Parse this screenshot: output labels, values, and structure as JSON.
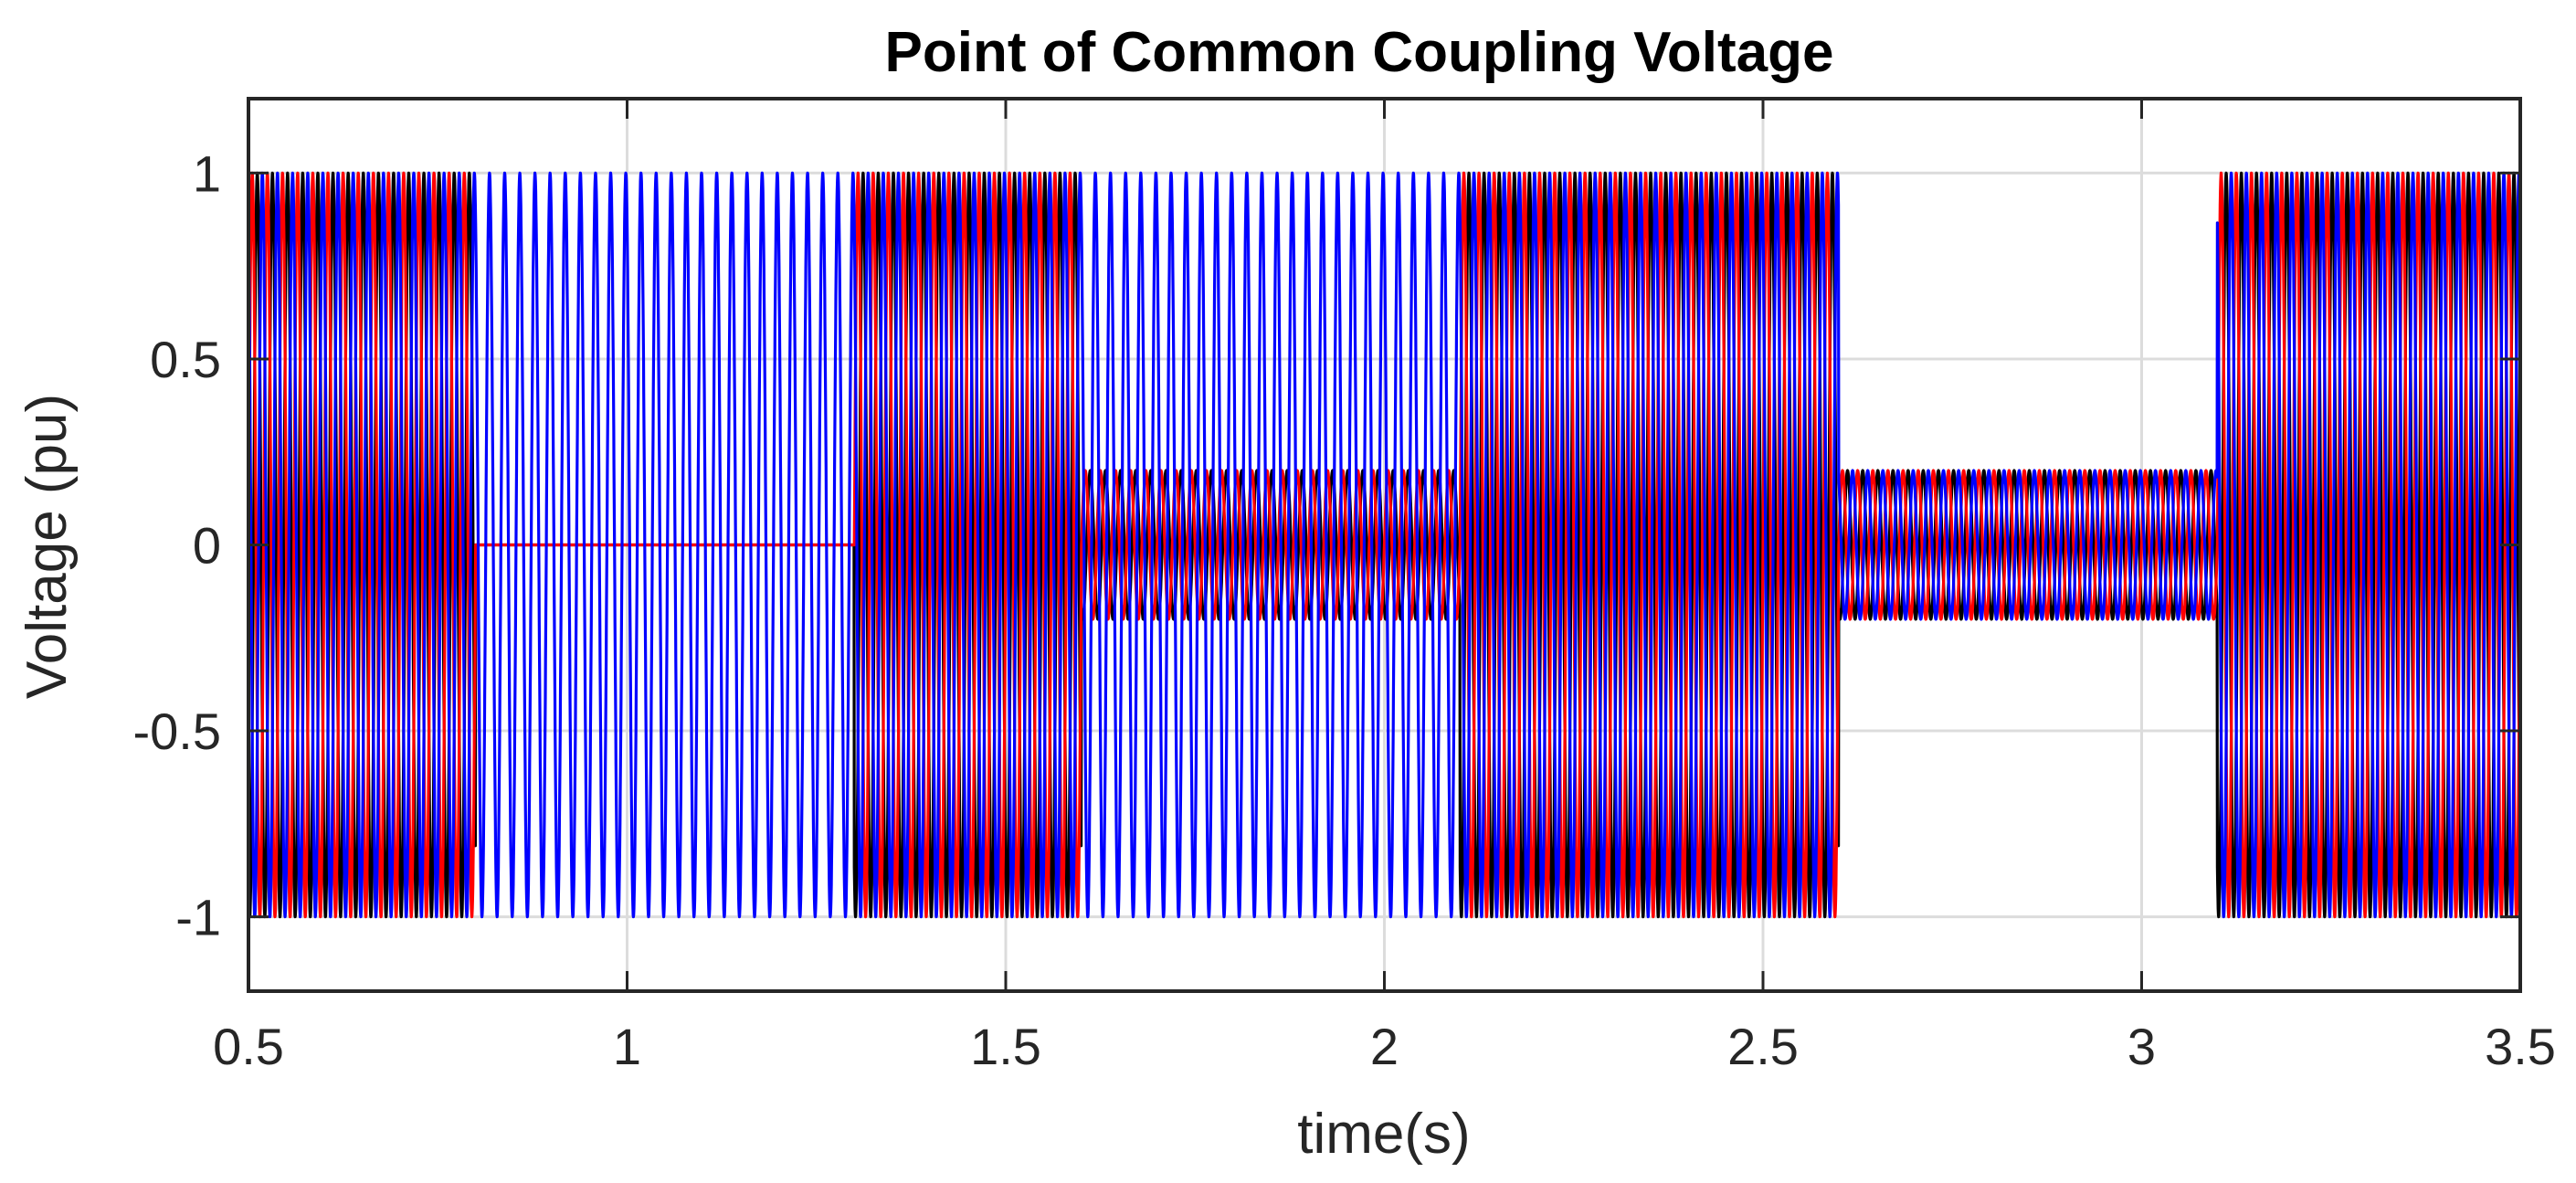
{
  "chart_data": {
    "type": "line",
    "title": "Point of Common Coupling Voltage",
    "xlabel": "time(s)",
    "ylabel": "Voltage (pu)",
    "xlim": [
      0.5,
      3.5
    ],
    "ylim": [
      -1.2,
      1.2
    ],
    "xticks": [
      0.5,
      1,
      1.5,
      2,
      2.5,
      3,
      3.5
    ],
    "xtick_labels": [
      "0.5",
      "1",
      "1.5",
      "2",
      "2.5",
      "3",
      "3.5"
    ],
    "yticks": [
      1,
      0.5,
      0,
      -0.5,
      -1
    ],
    "ytick_labels": [
      "1",
      "0.5",
      "0",
      "-0.5",
      "-1"
    ],
    "grid": true,
    "legend": "none",
    "frequency_hz": 50,
    "phases": [
      {
        "color": "#ff0000",
        "phase_deg": 0
      },
      {
        "color": "#000000",
        "phase_deg": -120
      },
      {
        "color": "#0000ff",
        "phase_deg": 120
      }
    ],
    "segments": [
      {
        "start": 0.5,
        "end": 0.8,
        "amplitudes": [
          1,
          1,
          1
        ]
      },
      {
        "start": 0.8,
        "end": 1.3,
        "amplitudes": [
          0,
          0,
          1
        ]
      },
      {
        "start": 1.3,
        "end": 1.6,
        "amplitudes": [
          1,
          1,
          1
        ]
      },
      {
        "start": 1.6,
        "end": 2.1,
        "amplitudes": [
          0.2,
          0.2,
          1
        ]
      },
      {
        "start": 2.1,
        "end": 2.6,
        "amplitudes": [
          1,
          1,
          1
        ]
      },
      {
        "start": 2.6,
        "end": 3.1,
        "amplitudes": [
          0.2,
          0.2,
          0.2
        ]
      },
      {
        "start": 3.1,
        "end": 3.5,
        "amplitudes": [
          1,
          1,
          1
        ]
      }
    ]
  }
}
